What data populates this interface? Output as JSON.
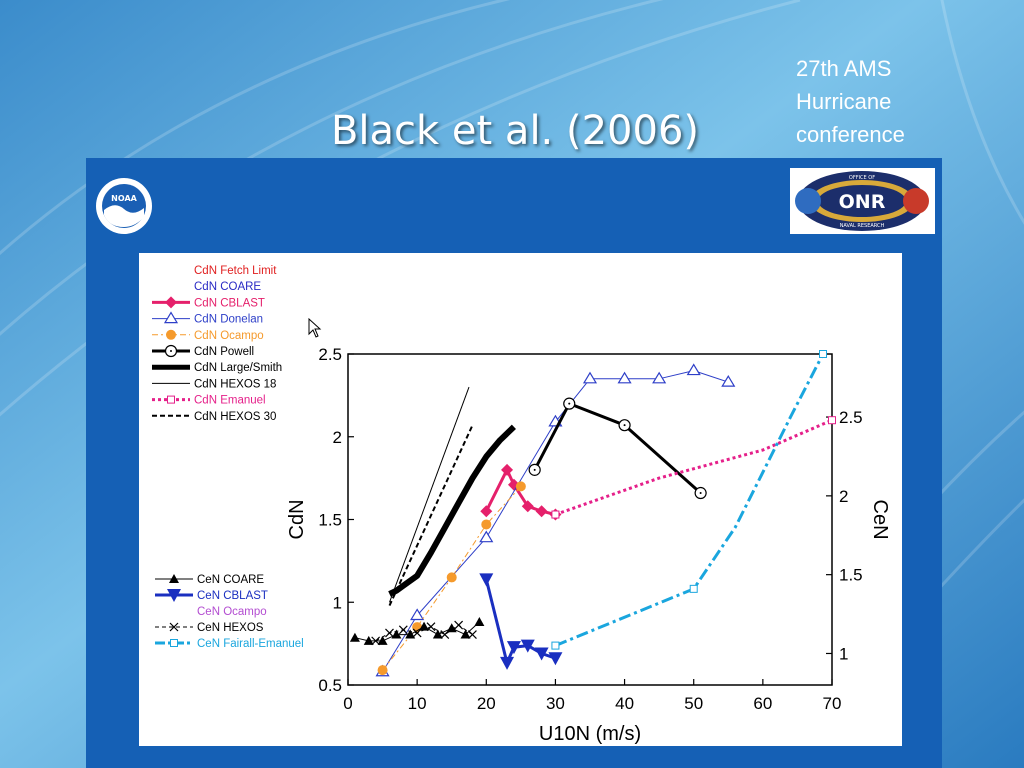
{
  "slide": {
    "title": "Black et al. (2006)",
    "conference": [
      "27th AMS",
      "Hurricane",
      "conference"
    ],
    "logos": {
      "left": "noaa-logo",
      "right": "onr-logo",
      "left_text": "NOAA",
      "right_text": "ONR",
      "right_ring_top": "OFFICE OF",
      "right_ring_bottom": "NAVAL RESEARCH"
    }
  },
  "chart_data": {
    "type": "line",
    "xlabel": "U10N (m/s)",
    "ylabel": "CdN",
    "y2label": "CeN",
    "xlim": [
      0,
      70
    ],
    "ylim": [
      0.5,
      2.5
    ],
    "y2lim": [
      0.8,
      2.9
    ],
    "xticks": [
      0,
      10,
      20,
      30,
      40,
      50,
      60,
      70
    ],
    "yticks": [
      0.5,
      1,
      1.5,
      2,
      2.5
    ],
    "y2ticks": [
      1,
      1.5,
      2,
      2.5
    ],
    "grid": false,
    "legend_top": [
      "CdN Fetch Limit",
      "CdN COARE",
      "CdN CBLAST",
      "CdN Donelan",
      "CdN Ocampo",
      "CdN Powell",
      "CdN Large/Smith",
      "CdN HEXOS 18",
      "CdN Emanuel",
      "CdN HEXOS 30"
    ],
    "legend_bottom": [
      "CeN COARE",
      "CeN CBLAST",
      "CeN Ocampo",
      "CeN HEXOS",
      "CeN Fairall-Emanuel"
    ],
    "colors": {
      "cblast": "#e5206b",
      "donelan": "#2e3fc8",
      "ocampo": "#f59a2c",
      "powell": "#000000",
      "emanuel": "#e5208a",
      "ce_cblast": "#1a2fc0",
      "ce_fairall": "#1aa6de",
      "coare_text": "#2929c4",
      "fetch_text": "#e02020",
      "ce_ocampo_text": "#b34dd1"
    },
    "series": [
      {
        "name": "CdN CBLAST",
        "axis": "left",
        "x": [
          20,
          23,
          24,
          26,
          28,
          30
        ],
        "y": [
          1.55,
          1.8,
          1.71,
          1.58,
          1.55,
          1.53
        ]
      },
      {
        "name": "CdN Donelan",
        "axis": "left",
        "x": [
          5,
          10,
          20,
          30,
          35,
          40,
          45,
          50,
          55
        ],
        "y": [
          0.58,
          0.92,
          1.39,
          2.09,
          2.35,
          2.35,
          2.35,
          2.4,
          2.33
        ]
      },
      {
        "name": "CdN Ocampo",
        "axis": "left",
        "x": [
          5,
          10,
          15,
          20,
          25
        ],
        "y": [
          0.59,
          0.85,
          1.15,
          1.47,
          1.7
        ]
      },
      {
        "name": "CdN Powell",
        "axis": "left",
        "x": [
          27,
          32,
          40,
          51
        ],
        "y": [
          1.8,
          2.2,
          2.07,
          1.66
        ]
      },
      {
        "name": "CdN Large/Smith",
        "axis": "left",
        "x": [
          6,
          7,
          8,
          10,
          12,
          14,
          16,
          18,
          20,
          22,
          24
        ],
        "y": [
          1.05,
          1.07,
          1.1,
          1.16,
          1.3,
          1.45,
          1.6,
          1.75,
          1.88,
          1.98,
          2.06
        ]
      },
      {
        "name": "CdN HEXOS 18",
        "axis": "left",
        "x": [
          6,
          17.5
        ],
        "y": [
          1.0,
          2.3
        ]
      },
      {
        "name": "CdN HEXOS 30",
        "axis": "left",
        "x": [
          6,
          18
        ],
        "y": [
          0.98,
          2.07
        ]
      },
      {
        "name": "CdN Emanuel",
        "axis": "left",
        "x": [
          30,
          45,
          60,
          70
        ],
        "y": [
          1.53,
          1.75,
          1.92,
          2.1
        ]
      },
      {
        "name": "CeN COARE",
        "axis": "right",
        "x": [
          1,
          3,
          5,
          7,
          9,
          11,
          13,
          15,
          17,
          19
        ],
        "y": [
          1.1,
          1.08,
          1.08,
          1.12,
          1.12,
          1.17,
          1.12,
          1.16,
          1.12,
          1.2
        ]
      },
      {
        "name": "CeN HEXOS",
        "axis": "right",
        "x": [
          4,
          6,
          8,
          10,
          12,
          14,
          16,
          18
        ],
        "y": [
          1.08,
          1.13,
          1.15,
          1.13,
          1.17,
          1.12,
          1.18,
          1.12
        ]
      },
      {
        "name": "CeN CBLAST",
        "axis": "right",
        "x": [
          20,
          23,
          24,
          26,
          28,
          30
        ],
        "y": [
          1.47,
          0.94,
          1.04,
          1.05,
          1.0,
          0.97
        ]
      },
      {
        "name": "CeN Fairall-Emanuel",
        "axis": "right",
        "x": [
          30,
          50,
          56,
          60,
          64,
          68.7
        ],
        "y": [
          1.05,
          1.41,
          1.8,
          2.15,
          2.5,
          2.9
        ]
      }
    ]
  }
}
